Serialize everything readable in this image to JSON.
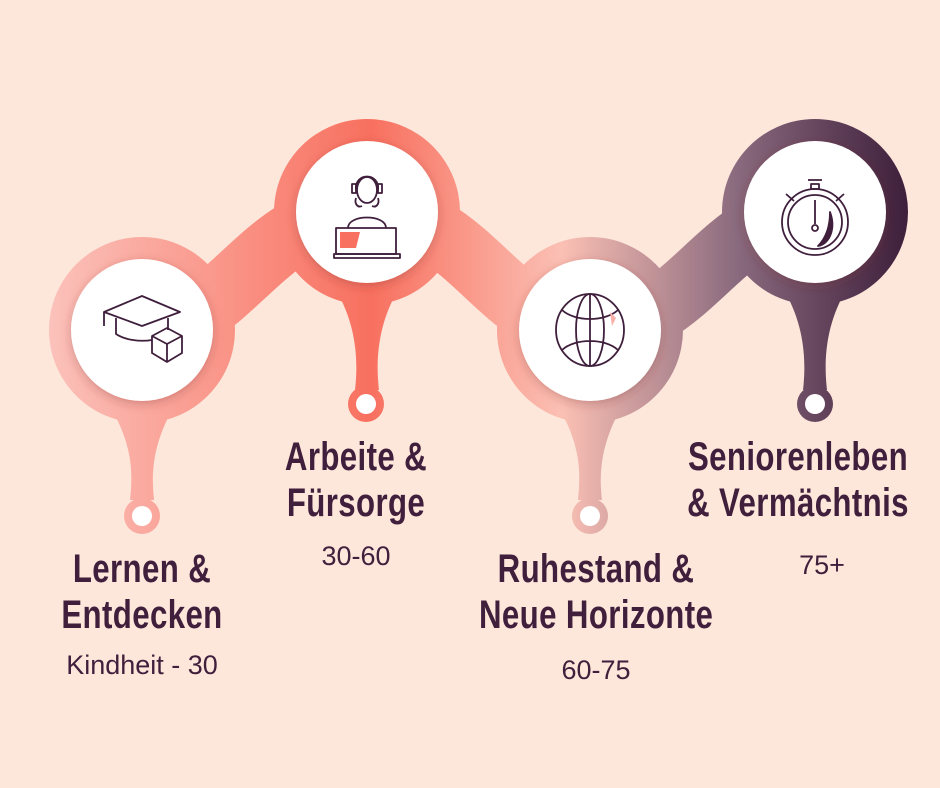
{
  "colors": {
    "background": "#fde6da",
    "text": "#3f1f3c",
    "pink": "#f9b8b0",
    "coral": "#f8705f",
    "purple": "#3d1e3a"
  },
  "stages": [
    {
      "icon": "graduation-cap-icon",
      "title_line1": "Lernen &",
      "title_line2": "Entdecken",
      "age": "Kindheit - 30"
    },
    {
      "icon": "person-laptop-headset-icon",
      "title_line1": "Arbeite &",
      "title_line2": "Fürsorge",
      "age": "30-60"
    },
    {
      "icon": "globe-icon",
      "title_line1": "Ruhestand &",
      "title_line2": "Neue Horizonte",
      "age": "60-75"
    },
    {
      "icon": "stopwatch-icon",
      "title_line1": "Seniorenleben",
      "title_line2": "& Vermächtnis",
      "age": "75+"
    }
  ]
}
